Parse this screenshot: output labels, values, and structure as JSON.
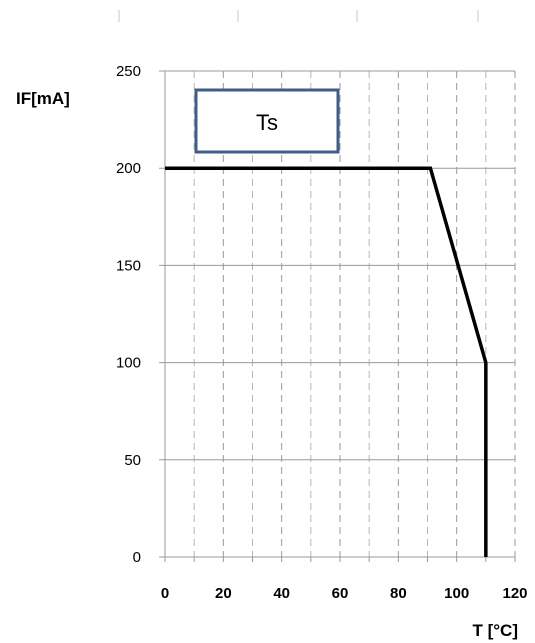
{
  "chart_data": {
    "type": "line",
    "ylabel": "IF[mA]",
    "xlabel": "T [°C]",
    "annotation": "Ts",
    "xlim": [
      0,
      120
    ],
    "ylim": [
      0,
      250
    ],
    "x_ticks": [
      0,
      20,
      40,
      60,
      80,
      100,
      120
    ],
    "y_ticks": [
      0,
      50,
      100,
      150,
      200,
      250
    ],
    "x_minor_step": 10,
    "grid": true,
    "series": [
      {
        "x": [
          0,
          91,
          110,
          110
        ],
        "y": [
          200,
          200,
          100,
          0
        ],
        "color": "#000000"
      }
    ],
    "colors": {
      "major_grid": "#9a9a9a",
      "minor_grid": "#b5b5b5",
      "box_border": "#3f5d86"
    }
  }
}
